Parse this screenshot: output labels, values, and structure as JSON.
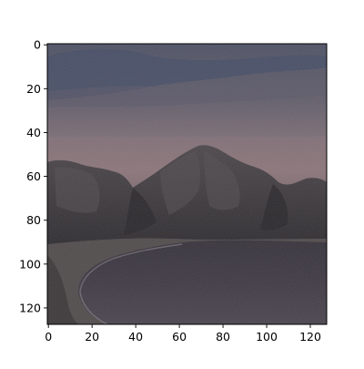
{
  "figure": {
    "kind": "image-plot",
    "image_description_subject": "coastal cliffs at dusk with curved bay",
    "axes": {
      "x_ticks": [
        {
          "value": 0,
          "label": "0"
        },
        {
          "value": 20,
          "label": "20"
        },
        {
          "value": 40,
          "label": "40"
        },
        {
          "value": 60,
          "label": "60"
        },
        {
          "value": 80,
          "label": "80"
        },
        {
          "value": 100,
          "label": "100"
        },
        {
          "value": 120,
          "label": "120"
        }
      ],
      "y_ticks": [
        {
          "value": 0,
          "label": "0"
        },
        {
          "value": 20,
          "label": "20"
        },
        {
          "value": 40,
          "label": "40"
        },
        {
          "value": 60,
          "label": "60"
        },
        {
          "value": 80,
          "label": "80"
        },
        {
          "value": 100,
          "label": "100"
        },
        {
          "value": 120,
          "label": "120"
        }
      ],
      "x_range": [
        -0.5,
        127.5
      ],
      "y_range": [
        -0.5,
        127.5
      ],
      "y_inverted": true
    },
    "colors": {
      "sky_top": "#4a4e62",
      "sky_mid": "#6a6270",
      "sky_glow": "#8a7278",
      "cloud_dark": "#414a63",
      "cliff_dark": "#2c2a2e",
      "cliff_mid": "#3d393d",
      "cliff_light": "#4d474a",
      "water": "#3a3540",
      "water_light": "#4b4550",
      "beach": "#56504f",
      "frame": "#000000"
    }
  }
}
